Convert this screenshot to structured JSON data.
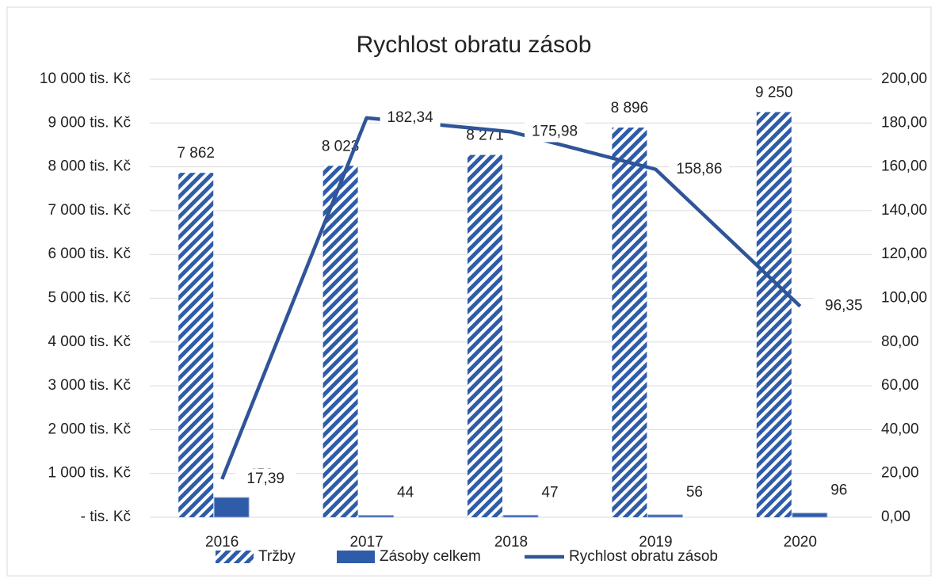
{
  "chart_data": {
    "type": "bar",
    "title": "Rychlost obratu zásob",
    "categories": [
      "2016",
      "2017",
      "2018",
      "2019",
      "2020"
    ],
    "series": [
      {
        "name": "Tržby",
        "color": "#2f5ca8",
        "pattern": "hatch",
        "values": [
          7862,
          8023,
          8271,
          8896,
          9250
        ],
        "value_labels": [
          "7 862",
          "8 023",
          "8 271",
          "8 896",
          "9 250"
        ]
      },
      {
        "name": "Zásoby celkem",
        "color": "#2f5ca8",
        "values": [
          452,
          44,
          47,
          56,
          96
        ]
      },
      {
        "name": "Rychlost obratu zásob",
        "color": "#2f5597",
        "type": "line",
        "axis": "y2",
        "values": [
          17.39,
          182.34,
          175.98,
          158.86,
          96.35
        ],
        "value_labels": [
          "17,39",
          "182,34",
          "175,98",
          "158,86",
          "96,35"
        ]
      }
    ],
    "ylim": [
      0,
      10000
    ],
    "yticks": [
      {
        "value": 0,
        "label": "- tis. Kč"
      },
      {
        "value": 1000,
        "label": "1 000 tis. Kč"
      },
      {
        "value": 2000,
        "label": "2 000 tis. Kč"
      },
      {
        "value": 3000,
        "label": "3 000 tis. Kč"
      },
      {
        "value": 4000,
        "label": "4 000 tis. Kč"
      },
      {
        "value": 5000,
        "label": "5 000 tis. Kč"
      },
      {
        "value": 6000,
        "label": "6 000 tis. Kč"
      },
      {
        "value": 7000,
        "label": "7 000 tis. Kč"
      },
      {
        "value": 8000,
        "label": "8 000 tis. Kč"
      },
      {
        "value": 9000,
        "label": "9 000 tis. Kč"
      },
      {
        "value": 10000,
        "label": "10 000 tis. Kč"
      }
    ],
    "y2lim": [
      0,
      200
    ],
    "y2ticks": [
      {
        "value": 0,
        "label": "0,00"
      },
      {
        "value": 20,
        "label": "20,00"
      },
      {
        "value": 40,
        "label": "40,00"
      },
      {
        "value": 60,
        "label": "60,00"
      },
      {
        "value": 80,
        "label": "80,00"
      },
      {
        "value": 100,
        "label": "100,00"
      },
      {
        "value": 120,
        "label": "120,00"
      },
      {
        "value": 140,
        "label": "140,00"
      },
      {
        "value": 160,
        "label": "160,00"
      },
      {
        "value": 180,
        "label": "180,00"
      },
      {
        "value": 200,
        "label": "200,00"
      }
    ],
    "grid": true,
    "legend": "bottom"
  }
}
